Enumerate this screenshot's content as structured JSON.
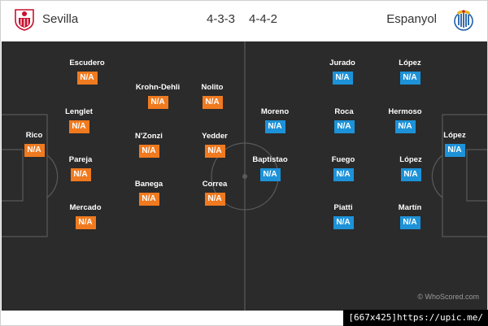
{
  "header": {
    "home_team": "Sevilla",
    "away_team": "Espanyol",
    "home_formation": "4-3-3",
    "away_formation": "4-4-2"
  },
  "players": {
    "home": [
      {
        "name": "Rico",
        "rating": "N/A"
      },
      {
        "name": "Escudero",
        "rating": "N/A"
      },
      {
        "name": "Lenglet",
        "rating": "N/A"
      },
      {
        "name": "Pareja",
        "rating": "N/A"
      },
      {
        "name": "Mercado",
        "rating": "N/A"
      },
      {
        "name": "Krohn-Dehli",
        "rating": "N/A"
      },
      {
        "name": "N'Zonzi",
        "rating": "N/A"
      },
      {
        "name": "Banega",
        "rating": "N/A"
      },
      {
        "name": "Nolito",
        "rating": "N/A"
      },
      {
        "name": "Yedder",
        "rating": "N/A"
      },
      {
        "name": "Correa",
        "rating": "N/A"
      }
    ],
    "away": [
      {
        "name": "López",
        "rating": "N/A"
      },
      {
        "name": "López",
        "rating": "N/A"
      },
      {
        "name": "Hermoso",
        "rating": "N/A"
      },
      {
        "name": "López",
        "rating": "N/A"
      },
      {
        "name": "Martín",
        "rating": "N/A"
      },
      {
        "name": "Jurado",
        "rating": "N/A"
      },
      {
        "name": "Roca",
        "rating": "N/A"
      },
      {
        "name": "Fuego",
        "rating": "N/A"
      },
      {
        "name": "Piatti",
        "rating": "N/A"
      },
      {
        "name": "Moreno",
        "rating": "N/A"
      },
      {
        "name": "Baptistao",
        "rating": "N/A"
      }
    ]
  },
  "watermark": "© WhoScored.com",
  "footer_tag": "[667x425]https://upic.me/",
  "colors": {
    "home_rating": "#f07a1f",
    "away_rating": "#1d92d8",
    "pitch": "#2b2b2b",
    "lines": "#5a5a5a"
  },
  "icons": {
    "home_crest": "sevilla-crest-icon",
    "away_crest": "espanyol-crest-icon"
  }
}
